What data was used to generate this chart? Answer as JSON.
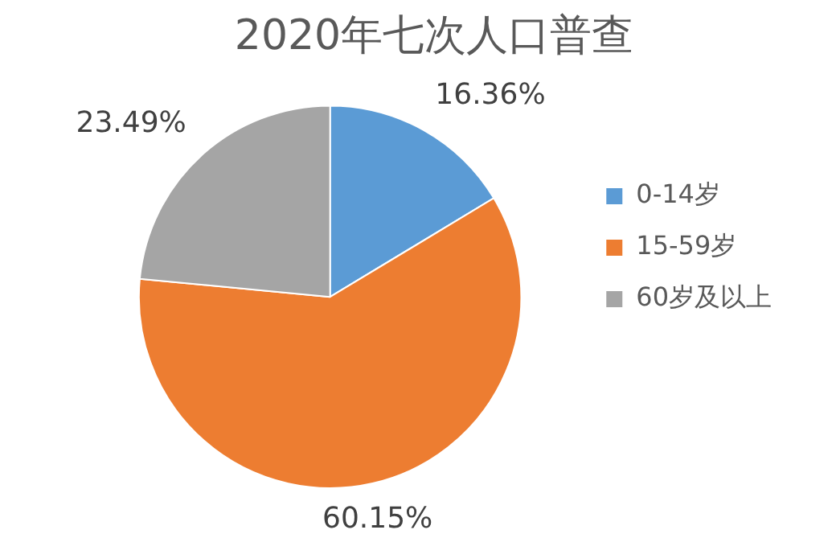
{
  "chart_data": {
    "type": "pie",
    "title": "2020年七次人口普查",
    "categories": [
      "0-14岁",
      "15-59岁",
      "60岁及以上"
    ],
    "values": [
      16.36,
      60.15,
      23.49
    ],
    "colors": [
      "#5b9bd5",
      "#ed7d31",
      "#a5a5a5"
    ],
    "value_labels": [
      "16.36%",
      "60.15%",
      "23.49%"
    ],
    "legend": "right"
  }
}
